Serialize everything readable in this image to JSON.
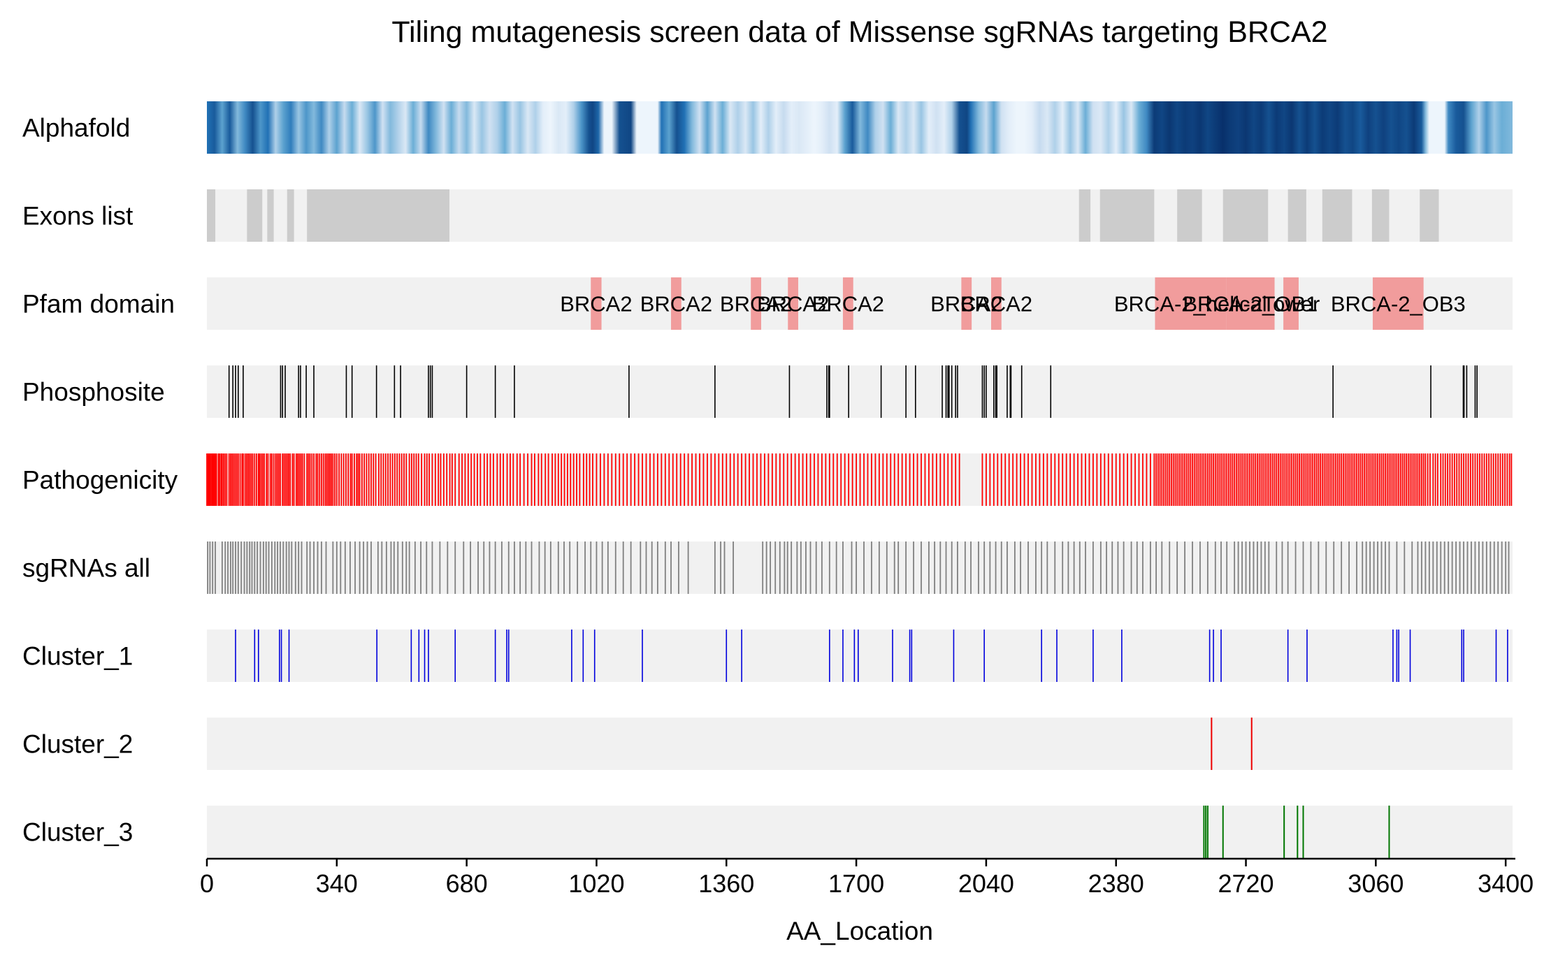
{
  "chart_data": {
    "type": "track_plot",
    "title": "Tiling mutagenesis screen data of Missense sgRNAs targeting BRCA2",
    "xlabel": "AA_Location",
    "xlim": [
      0,
      3418
    ],
    "xticks": [
      0,
      340,
      680,
      1020,
      1360,
      1700,
      2040,
      2380,
      2720,
      3060,
      3400
    ],
    "track_labels": {
      "alphafold": "Alphafold",
      "exons": "Exons list",
      "pfam": "Pfam domain",
      "phospho": "Phosphosite",
      "patho": "Pathogenicity",
      "sgrna": "sgRNAs all",
      "c1": "Cluster_1",
      "c2": "Cluster_2",
      "c3": "Cluster_3"
    },
    "colors": {
      "track_bg": "#f1f1f1",
      "exon": "#cccccc",
      "pfam": "#f19c9c",
      "phospho": "#000000",
      "patho": "#ff0000",
      "sgrna": "#808080",
      "c1": "#0000dd",
      "c2": "#ee0000",
      "c3": "#007700"
    },
    "alphafold_colormap": "Blues",
    "alphafold_stops": [
      [
        0,
        0.7
      ],
      [
        20,
        0.8
      ],
      [
        40,
        0.5
      ],
      [
        60,
        0.8
      ],
      [
        80,
        0.4
      ],
      [
        100,
        0.6
      ],
      [
        120,
        0.85
      ],
      [
        140,
        0.55
      ],
      [
        160,
        0.7
      ],
      [
        180,
        0.3
      ],
      [
        200,
        0.5
      ],
      [
        220,
        0.65
      ],
      [
        240,
        0.35
      ],
      [
        260,
        0.55
      ],
      [
        280,
        0.4
      ],
      [
        300,
        0.6
      ],
      [
        320,
        0.3
      ],
      [
        340,
        0.5
      ],
      [
        360,
        0.25
      ],
      [
        380,
        0.45
      ],
      [
        400,
        0.15
      ],
      [
        420,
        0.35
      ],
      [
        440,
        0.55
      ],
      [
        460,
        0.2
      ],
      [
        480,
        0.4
      ],
      [
        500,
        0.3
      ],
      [
        520,
        0.15
      ],
      [
        540,
        0.45
      ],
      [
        560,
        0.25
      ],
      [
        580,
        0.6
      ],
      [
        600,
        0.4
      ],
      [
        620,
        0.2
      ],
      [
        640,
        0.45
      ],
      [
        660,
        0.25
      ],
      [
        680,
        0.4
      ],
      [
        700,
        0.15
      ],
      [
        720,
        0.35
      ],
      [
        740,
        0.2
      ],
      [
        760,
        0.3
      ],
      [
        780,
        0.45
      ],
      [
        800,
        0.2
      ],
      [
        820,
        0.35
      ],
      [
        840,
        0.15
      ],
      [
        860,
        0.3
      ],
      [
        880,
        0.1
      ],
      [
        900,
        0.05
      ],
      [
        920,
        0.15
      ],
      [
        940,
        0.1
      ],
      [
        960,
        0.3
      ],
      [
        980,
        0.55
      ],
      [
        1000,
        0.85
      ],
      [
        1010,
        0.9
      ],
      [
        1025,
        0.75
      ],
      [
        1040,
        0.05
      ],
      [
        1060,
        0.05
      ],
      [
        1080,
        0.85
      ],
      [
        1110,
        0.9
      ],
      [
        1125,
        0.05
      ],
      [
        1180,
        0.05
      ],
      [
        1190,
        0.7
      ],
      [
        1210,
        0.5
      ],
      [
        1230,
        0.85
      ],
      [
        1250,
        0.7
      ],
      [
        1270,
        0.4
      ],
      [
        1290,
        0.2
      ],
      [
        1310,
        0.5
      ],
      [
        1330,
        0.2
      ],
      [
        1350,
        0.45
      ],
      [
        1370,
        0.15
      ],
      [
        1390,
        0.3
      ],
      [
        1410,
        0.15
      ],
      [
        1430,
        0.35
      ],
      [
        1450,
        0.1
      ],
      [
        1470,
        0.3
      ],
      [
        1490,
        0.1
      ],
      [
        1510,
        0.25
      ],
      [
        1530,
        0.1
      ],
      [
        1550,
        0.15
      ],
      [
        1570,
        0.1
      ],
      [
        1590,
        0.05
      ],
      [
        1610,
        0.1
      ],
      [
        1630,
        0.2
      ],
      [
        1650,
        0.1
      ],
      [
        1670,
        0.5
      ],
      [
        1690,
        0.8
      ],
      [
        1710,
        0.4
      ],
      [
        1730,
        0.6
      ],
      [
        1750,
        0.3
      ],
      [
        1770,
        0.2
      ],
      [
        1790,
        0.45
      ],
      [
        1810,
        0.15
      ],
      [
        1830,
        0.3
      ],
      [
        1850,
        0.15
      ],
      [
        1870,
        0.35
      ],
      [
        1890,
        0.1
      ],
      [
        1910,
        0.2
      ],
      [
        1930,
        0.1
      ],
      [
        1950,
        0.3
      ],
      [
        1970,
        0.85
      ],
      [
        1990,
        0.9
      ],
      [
        2000,
        0.7
      ],
      [
        2020,
        0.4
      ],
      [
        2040,
        0.25
      ],
      [
        2060,
        0.5
      ],
      [
        2080,
        0.2
      ],
      [
        2100,
        0.1
      ],
      [
        2120,
        0.05
      ],
      [
        2140,
        0.05
      ],
      [
        2160,
        0.1
      ],
      [
        2180,
        0.25
      ],
      [
        2200,
        0.15
      ],
      [
        2220,
        0.3
      ],
      [
        2240,
        0.1
      ],
      [
        2260,
        0.35
      ],
      [
        2280,
        0.15
      ],
      [
        2300,
        0.45
      ],
      [
        2320,
        0.2
      ],
      [
        2340,
        0.15
      ],
      [
        2360,
        0.3
      ],
      [
        2380,
        0.1
      ],
      [
        2400,
        0.35
      ],
      [
        2420,
        0.15
      ],
      [
        2440,
        0.45
      ],
      [
        2460,
        0.6
      ],
      [
        2480,
        0.95
      ],
      [
        2500,
        0.9
      ],
      [
        2520,
        0.97
      ],
      [
        2540,
        0.9
      ],
      [
        2560,
        0.95
      ],
      [
        2580,
        0.92
      ],
      [
        2600,
        0.97
      ],
      [
        2620,
        0.9
      ],
      [
        2640,
        0.95
      ],
      [
        2660,
        1.0
      ],
      [
        2680,
        0.95
      ],
      [
        2700,
        0.92
      ],
      [
        2720,
        0.97
      ],
      [
        2740,
        0.9
      ],
      [
        2760,
        0.95
      ],
      [
        2780,
        0.85
      ],
      [
        2800,
        0.95
      ],
      [
        2820,
        0.9
      ],
      [
        2840,
        0.97
      ],
      [
        2860,
        0.85
      ],
      [
        2880,
        0.95
      ],
      [
        2900,
        0.85
      ],
      [
        2920,
        0.95
      ],
      [
        2940,
        0.9
      ],
      [
        2960,
        0.95
      ],
      [
        2980,
        0.85
      ],
      [
        3000,
        0.9
      ],
      [
        3020,
        0.8
      ],
      [
        3040,
        0.92
      ],
      [
        3060,
        0.85
      ],
      [
        3080,
        0.92
      ],
      [
        3100,
        0.85
      ],
      [
        3120,
        0.9
      ],
      [
        3140,
        0.85
      ],
      [
        3160,
        0.95
      ],
      [
        3180,
        0.8
      ],
      [
        3190,
        0.4
      ],
      [
        3200,
        0.05
      ],
      [
        3240,
        0.05
      ],
      [
        3250,
        0.6
      ],
      [
        3270,
        0.8
      ],
      [
        3290,
        0.85
      ],
      [
        3310,
        0.5
      ],
      [
        3330,
        0.3
      ],
      [
        3350,
        0.55
      ],
      [
        3370,
        0.35
      ],
      [
        3390,
        0.45
      ],
      [
        3418,
        0.4
      ]
    ],
    "exons": [
      [
        0,
        22
      ],
      [
        105,
        145
      ],
      [
        158,
        175
      ],
      [
        210,
        228
      ],
      [
        262,
        635
      ],
      [
        2283,
        2313
      ],
      [
        2338,
        2480
      ],
      [
        2540,
        2605
      ],
      [
        2660,
        2778
      ],
      [
        2830,
        2878
      ],
      [
        2920,
        2998
      ],
      [
        3050,
        3095
      ],
      [
        3175,
        3225
      ]
    ],
    "pfam_domains": [
      {
        "start": 1005,
        "end": 1033,
        "label": "BRCA2"
      },
      {
        "start": 1215,
        "end": 1242,
        "label": "BRCA2"
      },
      {
        "start": 1424,
        "end": 1451,
        "label": "BRCA2"
      },
      {
        "start": 1521,
        "end": 1548,
        "label": "BRCA2"
      },
      {
        "start": 1665,
        "end": 1692,
        "label": "BRCA2"
      },
      {
        "start": 1975,
        "end": 2002,
        "label": "BRCA2"
      },
      {
        "start": 2053,
        "end": 2080,
        "label": "BRCA2"
      },
      {
        "start": 2482,
        "end": 2668,
        "label": "BRCA-2_helical"
      },
      {
        "start": 2668,
        "end": 2795,
        "label": "BRCA-2_OB1"
      },
      {
        "start": 2818,
        "end": 2858,
        "label": "Tower"
      },
      {
        "start": 3052,
        "end": 3185,
        "label": "BRCA-2_OB3"
      }
    ],
    "phosphosites": [
      58,
      68,
      75,
      82,
      95,
      193,
      198,
      205,
      240,
      245,
      260,
      280,
      365,
      380,
      444,
      491,
      507,
      580,
      585,
      590,
      680,
      755,
      805,
      1105,
      1330,
      1525,
      1623,
      1628,
      1630,
      1680,
      1765,
      1830,
      1855,
      1925,
      1935,
      1940,
      1943,
      1950,
      1960,
      1965,
      2030,
      2035,
      2040,
      2060,
      2065,
      2068,
      2095,
      2103,
      2105,
      2133,
      2209,
      2948,
      3204,
      3289,
      3291,
      3298,
      3320,
      3325
    ],
    "pathogenicity": [
      0,
      3,
      6,
      8,
      11,
      14,
      17,
      20,
      22,
      25,
      30,
      33,
      37,
      40,
      44,
      48,
      52,
      58,
      62,
      66,
      70,
      74,
      78,
      82,
      87,
      92,
      95,
      100,
      104,
      108,
      112,
      116,
      120,
      125,
      130,
      135,
      138,
      142,
      146,
      150,
      156,
      160,
      166,
      170,
      175,
      180,
      184,
      188,
      192,
      198,
      202,
      206,
      210,
      214,
      218,
      224,
      228,
      234,
      238,
      242,
      246,
      250,
      255,
      262,
      266,
      270,
      275,
      280,
      286,
      290,
      295,
      300,
      305,
      310,
      314,
      318,
      322,
      326,
      330,
      335,
      340,
      346,
      352,
      358,
      364,
      370,
      376,
      380,
      386,
      392,
      396,
      400,
      406,
      412,
      418,
      424,
      430,
      436,
      442,
      450,
      456,
      462,
      468,
      474,
      480,
      486,
      492,
      498,
      504,
      510,
      516,
      522,
      530,
      536,
      542,
      548,
      554,
      562,
      570,
      576,
      582,
      590,
      598,
      606,
      612,
      620,
      628,
      636,
      642,
      650,
      660,
      668,
      676,
      684,
      692,
      700,
      708,
      716,
      726,
      734,
      742,
      750,
      760,
      768,
      776,
      786,
      794,
      802,
      812,
      820,
      830,
      840,
      850,
      858,
      868,
      876,
      886,
      894,
      904,
      912,
      920,
      928,
      936,
      944,
      952,
      960,
      968,
      976,
      986,
      994,
      1002,
      1010,
      1020,
      1030,
      1040,
      1050,
      1060,
      1070,
      1080,
      1090,
      1100,
      1110,
      1120,
      1130,
      1140,
      1150,
      1160,
      1170,
      1180,
      1190,
      1200,
      1210,
      1220,
      1230,
      1240,
      1250,
      1260,
      1270,
      1280,
      1290,
      1300,
      1310,
      1320,
      1330,
      1340,
      1350,
      1360,
      1370,
      1380,
      1390,
      1400,
      1410,
      1420,
      1430,
      1440,
      1450,
      1460,
      1470,
      1480,
      1490,
      1500,
      1510,
      1520,
      1530,
      1540,
      1550,
      1560,
      1570,
      1580,
      1590,
      1600,
      1610,
      1620,
      1630,
      1640,
      1650,
      1660,
      1670,
      1680,
      1690,
      1700,
      1710,
      1720,
      1730,
      1740,
      1750,
      1760,
      1770,
      1780,
      1790,
      1800,
      1810,
      1820,
      1830,
      1840,
      1850,
      1860,
      1870,
      1880,
      1890,
      1900,
      1910,
      1920,
      1930,
      1940,
      1950,
      1960,
      1970,
      2030,
      2040,
      2050,
      2060,
      2070,
      2080,
      2090,
      2100,
      2110,
      2120,
      2130,
      2140,
      2150,
      2160,
      2170,
      2180,
      2190,
      2200,
      2210,
      2220,
      2230,
      2240,
      2250,
      2260,
      2270,
      2280,
      2290,
      2300,
      2310,
      2320,
      2330,
      2340,
      2350,
      2360,
      2370,
      2380,
      2390,
      2400,
      2410,
      2420,
      2430,
      2440,
      2450,
      2460,
      2470,
      2480,
      2485,
      2490,
      2495,
      2500,
      2505,
      2510,
      2515,
      2520,
      2525,
      2530,
      2535,
      2540,
      2545,
      2550,
      2555,
      2560,
      2565,
      2570,
      2575,
      2580,
      2585,
      2590,
      2595,
      2600,
      2605,
      2610,
      2615,
      2620,
      2625,
      2630,
      2635,
      2640,
      2645,
      2650,
      2655,
      2660,
      2665,
      2670,
      2675,
      2680,
      2685,
      2690,
      2695,
      2700,
      2705,
      2710,
      2715,
      2720,
      2725,
      2730,
      2735,
      2740,
      2745,
      2750,
      2755,
      2760,
      2765,
      2770,
      2775,
      2780,
      2785,
      2790,
      2795,
      2800,
      2805,
      2810,
      2815,
      2820,
      2825,
      2830,
      2835,
      2840,
      2845,
      2850,
      2855,
      2860,
      2865,
      2870,
      2875,
      2880,
      2885,
      2890,
      2895,
      2900,
      2905,
      2910,
      2915,
      2920,
      2925,
      2930,
      2935,
      2940,
      2945,
      2950,
      2955,
      2960,
      2965,
      2970,
      2975,
      2980,
      2985,
      2990,
      2995,
      3000,
      3005,
      3010,
      3015,
      3020,
      3025,
      3030,
      3035,
      3040,
      3045,
      3050,
      3055,
      3060,
      3065,
      3070,
      3075,
      3080,
      3085,
      3090,
      3095,
      3100,
      3105,
      3110,
      3115,
      3120,
      3125,
      3130,
      3135,
      3140,
      3145,
      3150,
      3155,
      3160,
      3165,
      3170,
      3175,
      3180,
      3185,
      3190,
      3196,
      3202,
      3210,
      3216,
      3222,
      3230,
      3236,
      3242,
      3248,
      3254,
      3260,
      3266,
      3272,
      3278,
      3284,
      3290,
      3296,
      3302,
      3308,
      3314,
      3320,
      3326,
      3332,
      3338,
      3344,
      3350,
      3356,
      3362,
      3368,
      3374,
      3380,
      3386,
      3392,
      3398,
      3404,
      3410,
      3415
    ],
    "sgrnas": [
      2,
      8,
      15,
      22,
      40,
      48,
      55,
      62,
      68,
      75,
      82,
      90,
      98,
      105,
      112,
      118,
      125,
      132,
      140,
      148,
      155,
      162,
      170,
      178,
      185,
      192,
      200,
      208,
      215,
      222,
      232,
      240,
      248,
      262,
      270,
      280,
      290,
      300,
      312,
      330,
      340,
      350,
      362,
      375,
      388,
      400,
      410,
      420,
      430,
      448,
      458,
      470,
      482,
      490,
      500,
      512,
      522,
      530,
      545,
      560,
      575,
      590,
      610,
      630,
      650,
      672,
      690,
      710,
      725,
      740,
      755,
      772,
      790,
      805,
      820,
      835,
      850,
      870,
      885,
      900,
      920,
      935,
      950,
      970,
      990,
      1005,
      1020,
      1035,
      1050,
      1070,
      1090,
      1110,
      1135,
      1150,
      1165,
      1180,
      1200,
      1215,
      1235,
      1260,
      1330,
      1345,
      1355,
      1378,
      1455,
      1465,
      1475,
      1488,
      1500,
      1512,
      1520,
      1530,
      1545,
      1555,
      1568,
      1580,
      1595,
      1610,
      1630,
      1648,
      1665,
      1688,
      1700,
      1720,
      1740,
      1760,
      1780,
      1800,
      1810,
      1830,
      1850,
      1870,
      1890,
      1905,
      1920,
      1935,
      1950,
      1965,
      1985,
      2000,
      2020,
      2035,
      2050,
      2065,
      2080,
      2095,
      2115,
      2130,
      2150,
      2170,
      2185,
      2200,
      2220,
      2240,
      2255,
      2270,
      2285,
      2300,
      2320,
      2340,
      2355,
      2370,
      2385,
      2400,
      2420,
      2435,
      2450,
      2470,
      2485,
      2500,
      2520,
      2540,
      2560,
      2580,
      2600,
      2620,
      2640,
      2655,
      2670,
      2690,
      2700,
      2710,
      2720,
      2730,
      2740,
      2750,
      2760,
      2770,
      2780,
      2800,
      2815,
      2830,
      2850,
      2870,
      2890,
      2910,
      2930,
      2950,
      2970,
      2990,
      3010,
      3025,
      3035,
      3045,
      3055,
      3065,
      3075,
      3085,
      3095,
      3115,
      3135,
      3155,
      3170,
      3180,
      3190,
      3200,
      3210,
      3220,
      3230,
      3240,
      3250,
      3260,
      3270,
      3280,
      3290,
      3300,
      3310,
      3320,
      3330,
      3340,
      3350,
      3360,
      3370,
      3380,
      3390,
      3400,
      3408
    ],
    "cluster_1": [
      75,
      125,
      135,
      190,
      195,
      215,
      445,
      535,
      555,
      570,
      580,
      650,
      755,
      785,
      790,
      955,
      985,
      1015,
      1140,
      1360,
      1400,
      1630,
      1665,
      1695,
      1705,
      1795,
      1840,
      1845,
      1955,
      2035,
      2185,
      2225,
      2320,
      2395,
      2625,
      2635,
      2655,
      2830,
      2880,
      3105,
      3115,
      3120,
      3150,
      3285,
      3290,
      3375,
      3405
    ],
    "cluster_2": [
      2630,
      2735
    ],
    "cluster_3": [
      2610,
      2615,
      2620,
      2660,
      2820,
      2855,
      2870,
      3095
    ]
  }
}
